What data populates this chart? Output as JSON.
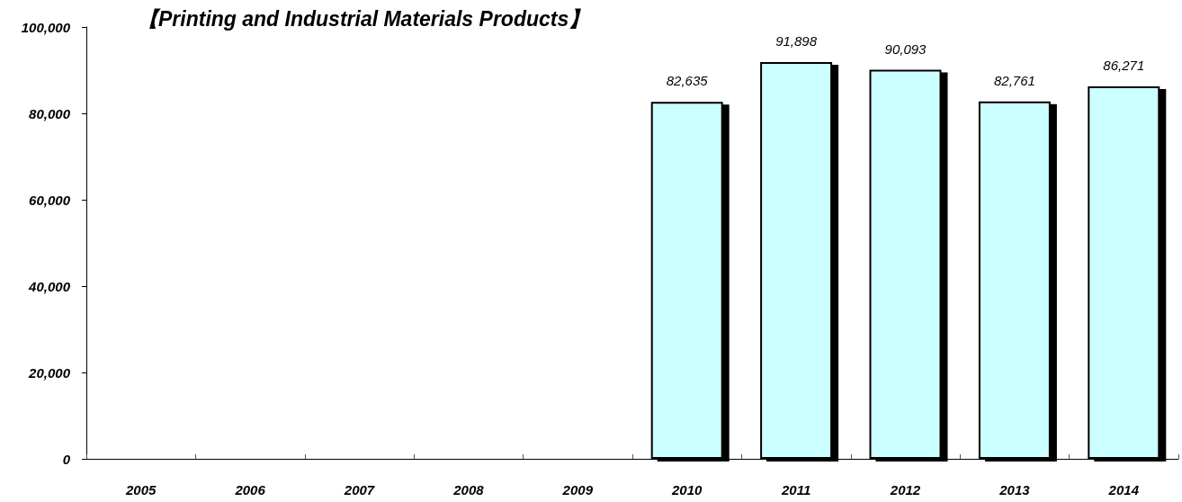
{
  "chart_data": {
    "type": "bar",
    "title": "【Printing and Industrial Materials Products】",
    "categories": [
      "2005",
      "2006",
      "2007",
      "2008",
      "2009",
      "2010",
      "2011",
      "2012",
      "2013",
      "2014"
    ],
    "values": [
      null,
      null,
      null,
      null,
      null,
      82635,
      91898,
      90093,
      82761,
      86271
    ],
    "color": "#ccffff",
    "value_labels": [
      null,
      null,
      null,
      null,
      null,
      "82,635",
      "91,898",
      "90,093",
      "82,761",
      "86,271"
    ],
    "ylim": [
      0,
      100000
    ],
    "yticks": [
      {
        "value": 0,
        "label": "0"
      },
      {
        "value": 20000,
        "label": "20,000"
      },
      {
        "value": 40000,
        "label": "40,000"
      },
      {
        "value": 60000,
        "label": "60,000"
      },
      {
        "value": 80000,
        "label": "80,000"
      },
      {
        "value": 100000,
        "label": "100,000"
      }
    ],
    "grid": false
  }
}
